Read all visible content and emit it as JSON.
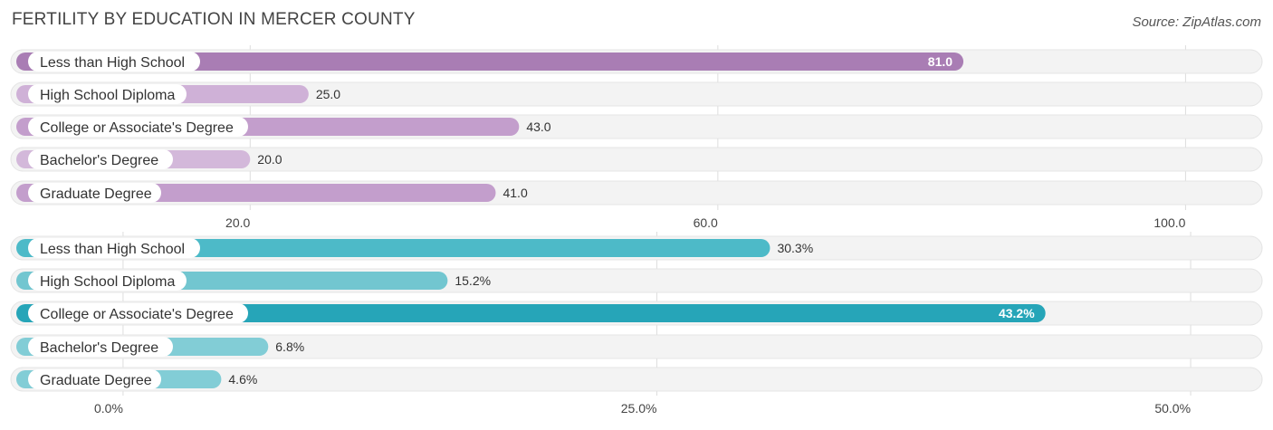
{
  "header": {
    "title": "FERTILITY BY EDUCATION IN MERCER COUNTY",
    "source": "Source: ZipAtlas.com"
  },
  "chart_data": [
    {
      "type": "bar",
      "orientation": "horizontal",
      "categories": [
        "Less than High School",
        "High School Diploma",
        "College or Associate's Degree",
        "Bachelor's Degree",
        "Graduate Degree"
      ],
      "values": [
        81.0,
        25.0,
        43.0,
        20.0,
        41.0
      ],
      "value_labels": [
        "81.0",
        "25.0",
        "43.0",
        "20.0",
        "41.0"
      ],
      "xlim": [
        0,
        105
      ],
      "ticks": [
        20.0,
        60.0,
        100.0
      ],
      "tick_labels": [
        "20.0",
        "60.0",
        "100.0"
      ],
      "colors": [
        "#a97db4",
        "#cfb1d7",
        "#c39ecc",
        "#d3b8da",
        "#c39ecc"
      ],
      "grid": true
    },
    {
      "type": "bar",
      "orientation": "horizontal",
      "categories": [
        "Less than High School",
        "High School Diploma",
        "College or Associate's Degree",
        "Bachelor's Degree",
        "Graduate Degree"
      ],
      "values": [
        30.3,
        15.2,
        43.2,
        6.8,
        4.6
      ],
      "value_labels": [
        "30.3%",
        "15.2%",
        "43.2%",
        "6.8%",
        "4.6%"
      ],
      "xlim": [
        -5,
        52.5
      ],
      "ticks": [
        0.0,
        25.0,
        50.0
      ],
      "tick_labels": [
        "0.0%",
        "25.0%",
        "50.0%"
      ],
      "colors": [
        "#4dbac8",
        "#72c6d0",
        "#26a5b8",
        "#82cdd6",
        "#82cdd6"
      ],
      "grid": true
    }
  ]
}
